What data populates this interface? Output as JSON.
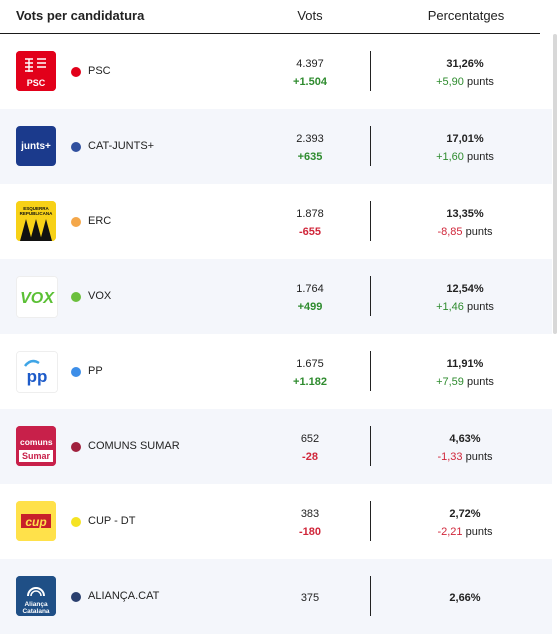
{
  "header": {
    "candidatura": "Vots per candidatura",
    "vots": "Vots",
    "percentatges": "Percentatges"
  },
  "rows": [
    {
      "logo_text": "PSC",
      "logo_bg": "#e2001a",
      "logo_fg": "#ffffff",
      "dot_color": "#e2001a",
      "name": "PSC",
      "votes": "4.397",
      "votes_change": "+1.504",
      "votes_change_sign": "pos",
      "pct": "31,26%",
      "pct_change": "+5,90",
      "pct_change_sign": "pos",
      "unit": "punts"
    },
    {
      "logo_text": "junts+",
      "logo_bg": "#1b3a8c",
      "logo_fg": "#ffffff",
      "dot_color": "#2f4f9e",
      "name": "CAT-JUNTS+",
      "votes": "2.393",
      "votes_change": "+635",
      "votes_change_sign": "pos",
      "pct": "17,01%",
      "pct_change": "+1,60",
      "pct_change_sign": "pos",
      "unit": "punts"
    },
    {
      "logo_text": "ESQUERRA REPUBLICANA",
      "logo_bg": "#f7d117",
      "logo_fg": "#111111",
      "dot_color": "#f4a74a",
      "name": "ERC",
      "votes": "1.878",
      "votes_change": "-655",
      "votes_change_sign": "neg",
      "pct": "13,35%",
      "pct_change": "-8,85",
      "pct_change_sign": "neg",
      "unit": "punts"
    },
    {
      "logo_text": "VOX",
      "logo_bg": "#ffffff",
      "logo_fg": "#5bc035",
      "dot_color": "#6bbf3c",
      "name": "VOX",
      "votes": "1.764",
      "votes_change": "+499",
      "votes_change_sign": "pos",
      "pct": "12,54%",
      "pct_change": "+1,46",
      "pct_change_sign": "pos",
      "unit": "punts"
    },
    {
      "logo_text": "PP",
      "logo_bg": "#ffffff",
      "logo_fg": "#1d5bc9",
      "dot_color": "#3d8ee8",
      "name": "PP",
      "votes": "1.675",
      "votes_change": "+1.182",
      "votes_change_sign": "pos",
      "pct": "11,91%",
      "pct_change": "+7,59",
      "pct_change_sign": "pos",
      "unit": "punts"
    },
    {
      "logo_text": "comuns Sumar",
      "logo_bg": "#c8204a",
      "logo_fg": "#ffffff",
      "dot_color": "#a0213e",
      "name": "COMUNS SUMAR",
      "votes": "652",
      "votes_change": "-28",
      "votes_change_sign": "neg",
      "pct": "4,63%",
      "pct_change": "-1,33",
      "pct_change_sign": "neg",
      "unit": "punts"
    },
    {
      "logo_text": "cup",
      "logo_bg": "#ffe14a",
      "logo_fg": "#c8202a",
      "dot_color": "#f5e323",
      "name": "CUP - DT",
      "votes": "383",
      "votes_change": "-180",
      "votes_change_sign": "neg",
      "pct": "2,72%",
      "pct_change": "-2,21",
      "pct_change_sign": "neg",
      "unit": "punts"
    },
    {
      "logo_text": "Aliança Catalana",
      "logo_bg": "#1f4f86",
      "logo_fg": "#ffffff",
      "dot_color": "#2a3f6e",
      "name": "ALIANÇA.CAT",
      "votes": "375",
      "votes_change": "",
      "votes_change_sign": "",
      "pct": "2,66%",
      "pct_change": "",
      "pct_change_sign": "",
      "unit": ""
    }
  ]
}
